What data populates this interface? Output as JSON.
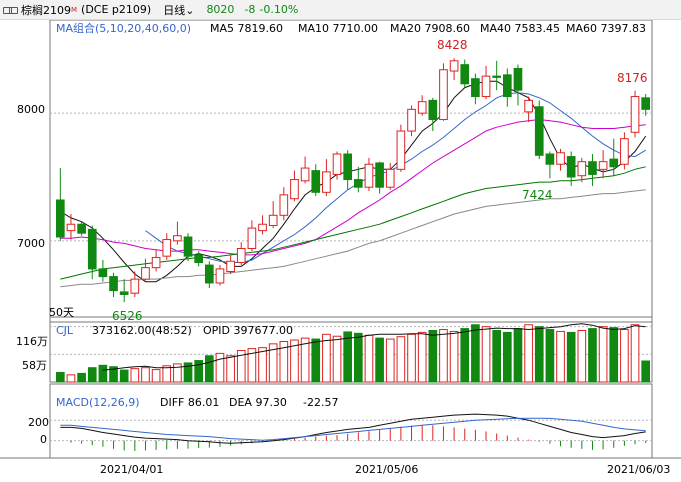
{
  "header": {
    "name": "棕榈2109",
    "marker": "M",
    "code": "(DCE p2109)",
    "period": "日线",
    "last_price": "8020",
    "change": "-8",
    "change_pct": "-0.10%"
  },
  "ma_legend": {
    "label": "MA组合(5,10,20,40,60,0)",
    "items": [
      {
        "text": "MA5 7819.60",
        "color": "#111111"
      },
      {
        "text": "MA10 7710.00",
        "color": "#3366cc"
      },
      {
        "text": "MA20 7908.60",
        "color": "#cc00cc"
      },
      {
        "text": "MA40 7583.45",
        "color": "#007700"
      },
      {
        "text": "MA60 7397.83",
        "color": "#888888"
      }
    ]
  },
  "price_axis": {
    "labels": [
      "8000",
      "7000"
    ]
  },
  "annotations": {
    "high": "8428",
    "low_left": "6526",
    "low_mid": "7424",
    "recent_high": "8176",
    "days": "50天"
  },
  "cjl_legend": {
    "label": "CJL",
    "vol": "373162.00(48:52)",
    "opid": "OPID 397677.00"
  },
  "cjl_axis": {
    "labels": [
      "116万",
      "58万"
    ]
  },
  "macd_legend": {
    "label": "MACD(12,26,9)",
    "diff": "DIFF 86.01",
    "dea": "DEA 97.30",
    "macd": "-22.57"
  },
  "macd_axis": {
    "labels": [
      "200",
      "0"
    ]
  },
  "dates": [
    "2021/04/01",
    "2021/05/06",
    "2021/06/03"
  ],
  "colors": {
    "up": "#dd2222",
    "down": "#118811",
    "grid": "#b8b8b8"
  },
  "chart_data": {
    "type": "candlestick",
    "candles": [
      [
        7320,
        7030,
        7570,
        7000
      ],
      [
        7080,
        7130,
        7210,
        7010
      ],
      [
        7130,
        7060,
        7150,
        7040
      ],
      [
        7090,
        6780,
        7120,
        6700
      ],
      [
        6780,
        6720,
        6850,
        6680
      ],
      [
        6720,
        6610,
        6750,
        6560
      ],
      [
        6600,
        6580,
        6700,
        6520
      ],
      [
        6590,
        6700,
        6760,
        6560
      ],
      [
        6700,
        6790,
        6860,
        6690
      ],
      [
        6790,
        6870,
        6930,
        6760
      ],
      [
        6880,
        7010,
        7060,
        6850
      ],
      [
        7000,
        7040,
        7150,
        6970
      ],
      [
        7030,
        6880,
        7060,
        6840
      ],
      [
        6890,
        6830,
        6920,
        6800
      ],
      [
        6810,
        6670,
        6840,
        6630
      ],
      [
        6670,
        6780,
        6810,
        6650
      ],
      [
        6760,
        6840,
        6890,
        6740
      ],
      [
        6830,
        6940,
        6990,
        6810
      ],
      [
        6940,
        7100,
        7160,
        6920
      ],
      [
        7080,
        7130,
        7200,
        7050
      ],
      [
        7120,
        7200,
        7310,
        7100
      ],
      [
        7200,
        7360,
        7420,
        7160
      ],
      [
        7330,
        7480,
        7550,
        7310
      ],
      [
        7470,
        7570,
        7660,
        7450
      ],
      [
        7550,
        7380,
        7600,
        7350
      ],
      [
        7380,
        7540,
        7640,
        7350
      ],
      [
        7520,
        7680,
        7700,
        7480
      ],
      [
        7680,
        7480,
        7710,
        7400
      ],
      [
        7480,
        7420,
        7580,
        7380
      ],
      [
        7420,
        7600,
        7650,
        7390
      ],
      [
        7610,
        7420,
        7620,
        7370
      ],
      [
        7420,
        7560,
        7610,
        7400
      ],
      [
        7560,
        7860,
        7910,
        7540
      ],
      [
        7860,
        8030,
        8060,
        7820
      ],
      [
        8000,
        8090,
        8140,
        7980
      ],
      [
        8100,
        7950,
        8120,
        7860
      ],
      [
        7950,
        8340,
        8390,
        7940
      ],
      [
        8330,
        8410,
        8430,
        8260
      ],
      [
        8380,
        8230,
        8420,
        8200
      ],
      [
        8270,
        8130,
        8310,
        8070
      ],
      [
        8130,
        8290,
        8370,
        8110
      ],
      [
        8290,
        8280,
        8410,
        8180
      ],
      [
        8300,
        8130,
        8350,
        8050
      ],
      [
        8350,
        8180,
        8380,
        8060
      ],
      [
        8010,
        8100,
        8130,
        7930
      ],
      [
        8050,
        7670,
        8100,
        7640
      ],
      [
        7680,
        7600,
        7700,
        7490
      ],
      [
        7600,
        7690,
        7720,
        7550
      ],
      [
        7660,
        7500,
        7700,
        7430
      ],
      [
        7510,
        7620,
        7650,
        7460
      ],
      [
        7620,
        7520,
        7680,
        7430
      ],
      [
        7560,
        7620,
        7710,
        7490
      ],
      [
        7640,
        7580,
        7800,
        7510
      ],
      [
        7600,
        7800,
        7850,
        7560
      ],
      [
        7850,
        8130,
        8176,
        7810
      ],
      [
        8120,
        8030,
        8150,
        7980
      ]
    ],
    "ma": {
      "MA5": [
        7230,
        7180,
        7150,
        7100,
        7020,
        6930,
        6830,
        6740,
        6680,
        6680,
        6730,
        6800,
        6880,
        6900,
        6880,
        6850,
        6800,
        6800,
        6860,
        6940,
        7020,
        7130,
        7250,
        7360,
        7420,
        7460,
        7520,
        7540,
        7560,
        7580,
        7560,
        7560,
        7640,
        7750,
        7860,
        7920,
        8000,
        8120,
        8200,
        8230,
        8250,
        8250,
        8200,
        8160,
        8120,
        7980,
        7800,
        7640,
        7570,
        7600,
        7570,
        7540,
        7560,
        7620,
        7700,
        7820
      ],
      "MA10": [
        null,
        null,
        null,
        null,
        null,
        null,
        null,
        null,
        7080,
        7020,
        6960,
        6920,
        6900,
        6880,
        6860,
        6840,
        6830,
        6830,
        6850,
        6900,
        6950,
        7000,
        7050,
        7110,
        7180,
        7260,
        7330,
        7400,
        7450,
        7500,
        7520,
        7550,
        7590,
        7640,
        7700,
        7750,
        7810,
        7880,
        7950,
        8010,
        8060,
        8120,
        8150,
        8160,
        8150,
        8120,
        8080,
        8020,
        7960,
        7890,
        7820,
        7760,
        7710,
        7670,
        7660,
        7710
      ],
      "MA20": [
        7020,
        7020,
        7030,
        7020,
        7010,
        6990,
        6980,
        6960,
        6940,
        6930,
        6920,
        6920,
        6930,
        6930,
        6920,
        6910,
        6900,
        6890,
        6890,
        6900,
        6920,
        6940,
        6960,
        6980,
        7010,
        7060,
        7110,
        7160,
        7220,
        7270,
        7320,
        7380,
        7430,
        7490,
        7550,
        7610,
        7660,
        7710,
        7760,
        7810,
        7860,
        7890,
        7910,
        7930,
        7940,
        7950,
        7940,
        7930,
        7910,
        7890,
        7880,
        7880,
        7880,
        7890,
        7900,
        7910
      ],
      "MA40": [
        6700,
        6720,
        6740,
        6760,
        6780,
        6790,
        6800,
        6810,
        6820,
        6830,
        6840,
        6850,
        6860,
        6870,
        6870,
        6880,
        6890,
        6900,
        6910,
        6920,
        6930,
        6950,
        6970,
        6990,
        7010,
        7030,
        7050,
        7070,
        7090,
        7110,
        7130,
        7160,
        7190,
        7220,
        7250,
        7280,
        7310,
        7340,
        7370,
        7390,
        7410,
        7420,
        7430,
        7440,
        7450,
        7460,
        7460,
        7470,
        7470,
        7480,
        7490,
        7500,
        7510,
        7530,
        7560,
        7580
      ],
      "MA60": [
        6640,
        6650,
        6660,
        6660,
        6670,
        6680,
        6690,
        6690,
        6700,
        6700,
        6710,
        6720,
        6720,
        6730,
        6730,
        6740,
        6750,
        6760,
        6770,
        6780,
        6790,
        6800,
        6820,
        6840,
        6860,
        6880,
        6900,
        6920,
        6950,
        6980,
        7000,
        7030,
        7060,
        7090,
        7120,
        7150,
        7180,
        7210,
        7230,
        7250,
        7270,
        7280,
        7290,
        7300,
        7310,
        7320,
        7330,
        7330,
        7340,
        7350,
        7360,
        7370,
        7370,
        7380,
        7390,
        7400
      ]
    },
    "volume": [
      20,
      15,
      18,
      30,
      35,
      32,
      25,
      28,
      30,
      26,
      34,
      38,
      40,
      45,
      55,
      60,
      55,
      66,
      70,
      72,
      80,
      85,
      88,
      92,
      90,
      100,
      96,
      105,
      102,
      98,
      92,
      90,
      95,
      100,
      104,
      108,
      110,
      106,
      112,
      120,
      116,
      108,
      104,
      112,
      120,
      116,
      110,
      106,
      104,
      108,
      112,
      116,
      114,
      110,
      120,
      44
    ],
    "vol_ma": [
      null,
      null,
      null,
      null,
      25,
      27,
      30,
      32,
      33,
      30,
      30,
      31,
      33,
      36,
      41,
      48,
      52,
      56,
      60,
      64,
      68,
      72,
      76,
      80,
      84,
      87,
      89,
      92,
      94,
      98,
      100,
      100,
      100,
      101,
      101,
      98,
      100,
      102,
      105,
      109,
      111,
      113,
      112,
      112,
      110,
      112,
      114,
      116,
      120,
      122,
      119,
      113,
      110,
      112,
      118,
      116
    ],
    "macd_hist": [
      null,
      -20,
      -30,
      -45,
      -60,
      -80,
      -95,
      -100,
      -95,
      -90,
      -85,
      -80,
      -78,
      -72,
      -68,
      -60,
      -48,
      -36,
      -25,
      -15,
      -6,
      5,
      18,
      28,
      40,
      50,
      55,
      68,
      80,
      92,
      106,
      120,
      138,
      148,
      155,
      150,
      140,
      130,
      118,
      105,
      90,
      70,
      50,
      30,
      10,
      -10,
      -30,
      -55,
      -70,
      -80,
      -90,
      -85,
      -70,
      -50,
      -35,
      -22
    ],
    "macd_diff": [
      130,
      130,
      120,
      100,
      80,
      65,
      50,
      35,
      25,
      20,
      15,
      10,
      0,
      -5,
      -10,
      -20,
      -25,
      -20,
      -15,
      -10,
      0,
      10,
      25,
      40,
      60,
      80,
      95,
      110,
      120,
      130,
      150,
      170,
      190,
      210,
      220,
      230,
      240,
      250,
      255,
      260,
      255,
      250,
      240,
      220,
      200,
      170,
      140,
      110,
      80,
      60,
      40,
      30,
      40,
      50,
      70,
      86
    ],
    "macd_dea": [
      150,
      150,
      140,
      130,
      120,
      110,
      100,
      90,
      80,
      70,
      60,
      55,
      50,
      45,
      40,
      30,
      20,
      15,
      10,
      5,
      10,
      20,
      30,
      40,
      50,
      60,
      70,
      80,
      90,
      100,
      110,
      120,
      130,
      140,
      150,
      160,
      170,
      180,
      190,
      200,
      205,
      210,
      215,
      218,
      220,
      220,
      218,
      210,
      200,
      190,
      170,
      150,
      130,
      115,
      105,
      97
    ]
  }
}
